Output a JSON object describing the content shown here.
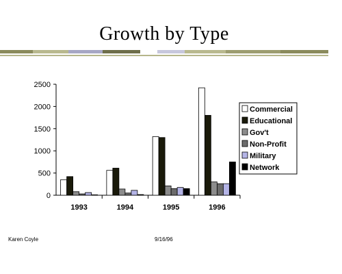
{
  "slide": {
    "title": "Growth by Type",
    "footer_author": "Karen Coyle",
    "footer_date": "9/16/96"
  },
  "chart_data": {
    "type": "bar",
    "title": "",
    "xlabel": "",
    "ylabel": "",
    "ylim": [
      0,
      2500
    ],
    "yticks": [
      "0",
      "500",
      "1000",
      "1500",
      "2000",
      "2500"
    ],
    "categories": [
      "1993",
      "1994",
      "1995",
      "1996"
    ],
    "grid": false,
    "legend": "right",
    "series": [
      {
        "name": "Commercial",
        "color": "#ffffff",
        "values": [
          350,
          560,
          1320,
          2420
        ]
      },
      {
        "name": "Educational",
        "color": "#1a1a0a",
        "values": [
          420,
          610,
          1300,
          1800
        ]
      },
      {
        "name": "Gov't",
        "color": "#8c8c8c",
        "values": [
          80,
          140,
          210,
          300
        ]
      },
      {
        "name": "Non-Profit",
        "color": "#6b6b6b",
        "values": [
          30,
          50,
          150,
          260
        ]
      },
      {
        "name": "Military",
        "color": "#b4b4e6",
        "values": [
          60,
          110,
          175,
          260
        ]
      },
      {
        "name": "Network",
        "color": "#000000",
        "values": [
          10,
          15,
          150,
          750
        ]
      }
    ]
  }
}
